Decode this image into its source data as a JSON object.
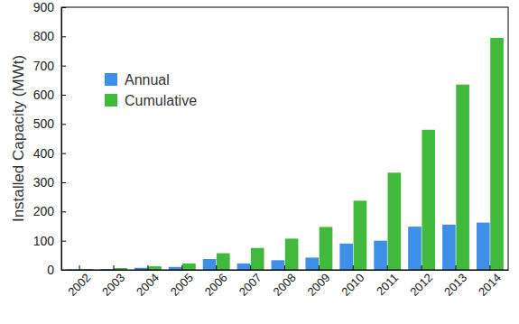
{
  "chart_data": {
    "type": "bar",
    "y_label": "Installed Capacity (MWt)",
    "categories": [
      "2002",
      "2003",
      "2004",
      "2005",
      "2006",
      "2007",
      "2008",
      "2009",
      "2010",
      "2011",
      "2012",
      "2013",
      "2014"
    ],
    "series": [
      {
        "name": "Annual",
        "color": "#3d8fe8",
        "values": [
          2,
          3,
          7,
          10,
          37,
          22,
          33,
          42,
          90,
          100,
          148,
          155,
          162
        ]
      },
      {
        "name": "Cumulative",
        "color": "#40b93c",
        "values": [
          3,
          6,
          12,
          22,
          57,
          75,
          107,
          147,
          237,
          333,
          480,
          635,
          795
        ]
      }
    ],
    "ylim": [
      0,
      900
    ],
    "yticks": [
      0,
      100,
      200,
      300,
      400,
      500,
      600,
      700,
      800,
      900
    ],
    "grid": false,
    "legend": "upper left"
  }
}
